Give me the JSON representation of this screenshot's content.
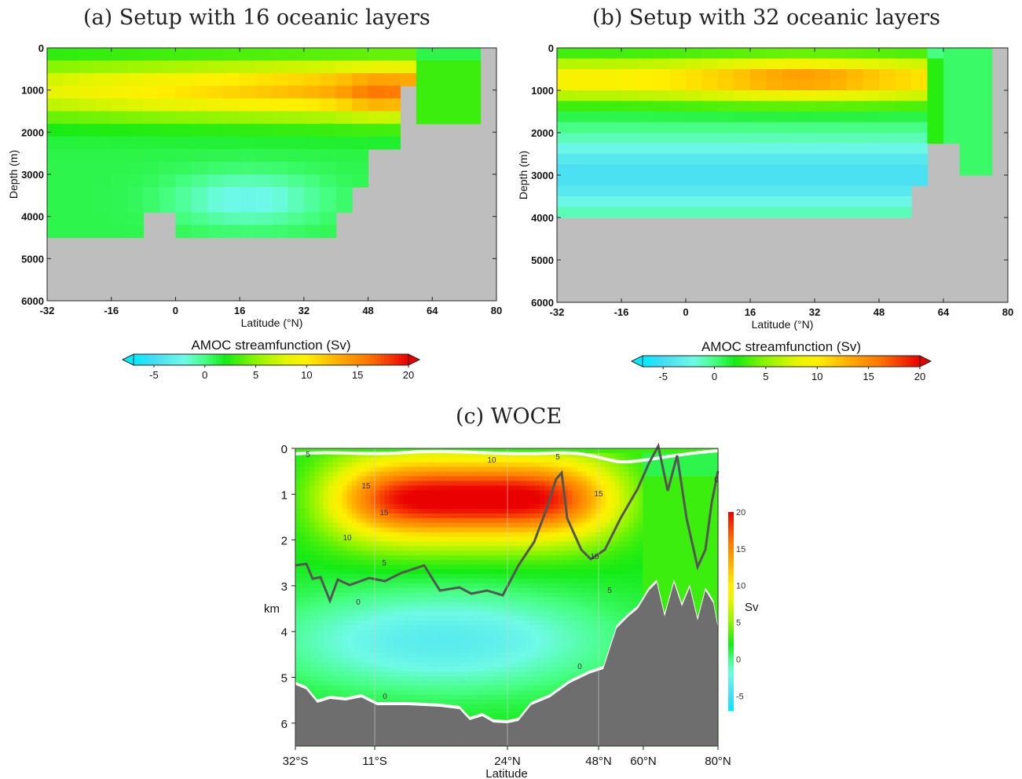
{
  "titles": {
    "a": "(a) Setup with 16 oceanic layers",
    "b": "(b) Setup with 32 oceanic layers",
    "c": "(c) WOCE"
  },
  "colors": {
    "land_gray": "#bebebe",
    "woce_topography": "#6e6e6e",
    "depth_line": "#555555"
  },
  "chart_data": [
    {
      "id": "a",
      "type": "heatmap",
      "title": "(a) Setup with 16 oceanic layers",
      "xlabel": "Latitude (°N)",
      "ylabel": "Depth (m)",
      "xlim": [
        -32,
        80
      ],
      "ylim": [
        6000,
        0
      ],
      "xticks": [
        -32,
        -16,
        0,
        16,
        32,
        48,
        64,
        80
      ],
      "yticks": [
        0,
        1000,
        2000,
        3000,
        4000,
        5000,
        6000
      ],
      "colorbar": {
        "label": "AMOC streamfunction (Sv)",
        "ticks": [
          -5,
          0,
          5,
          10,
          15,
          20
        ],
        "range": [
          -7,
          20
        ],
        "extend": "both"
      },
      "approx_field": {
        "ocean_floor_depth_m": [
          [
            -32,
            3900
          ],
          [
            -28,
            4600
          ],
          [
            -10,
            4600
          ],
          [
            -2,
            3900
          ],
          [
            8,
            4600
          ],
          [
            40,
            4600
          ],
          [
            44,
            3900
          ],
          [
            48,
            3200
          ],
          [
            54,
            2300
          ],
          [
            60,
            1000
          ],
          [
            68,
            1900
          ],
          [
            76,
            1900
          ],
          [
            80,
            0
          ]
        ],
        "max_overturning_sv": 15,
        "max_location": {
          "latitude": 52,
          "depth_m": 1000
        }
      }
    },
    {
      "id": "b",
      "type": "heatmap",
      "title": "(b) Setup with 32 oceanic layers",
      "xlabel": "Latitude (°N)",
      "ylabel": "Depth (m)",
      "xlim": [
        -32,
        80
      ],
      "ylim": [
        6000,
        0
      ],
      "xticks": [
        -32,
        -16,
        0,
        16,
        32,
        48,
        64,
        80
      ],
      "yticks": [
        0,
        1000,
        2000,
        3000,
        4000,
        5000,
        6000
      ],
      "colorbar": {
        "label": "AMOC streamfunction (Sv)",
        "ticks": [
          -5,
          0,
          5,
          10,
          15,
          20
        ],
        "range": [
          -7,
          20
        ],
        "extend": "both"
      },
      "approx_field": {
        "ocean_floor_depth_m": [
          [
            -32,
            3900
          ],
          [
            54,
            3900
          ],
          [
            58,
            3300
          ],
          [
            60,
            2200
          ],
          [
            66,
            2200
          ],
          [
            68,
            2900
          ],
          [
            76,
            2900
          ],
          [
            80,
            0
          ]
        ],
        "max_overturning_sv": 14,
        "max_location": {
          "latitude": 30,
          "depth_m": 700
        }
      }
    },
    {
      "id": "c",
      "type": "heatmap",
      "title": "(c) WOCE",
      "xlabel": "Latitude",
      "ylabel": "km",
      "xticks": [
        "32°S",
        "11°S",
        "24°N",
        "48°N",
        "60°N",
        "80°N"
      ],
      "yticks": [
        0,
        1,
        2,
        3,
        4,
        5,
        6
      ],
      "ylim": [
        6.5,
        0
      ],
      "colorbar": {
        "label": "Sv",
        "ticks": [
          -5,
          0,
          5,
          10,
          15,
          20
        ]
      },
      "contour_labels": [
        "5",
        "10",
        "5",
        "15",
        "15",
        "15",
        "10",
        "5",
        "10",
        "5",
        "0",
        "0",
        "0",
        "0"
      ],
      "approx_field": {
        "max_overturning_sv": 20,
        "max_location": {
          "latitude": "24°N",
          "depth_km": 1.0
        }
      }
    }
  ]
}
